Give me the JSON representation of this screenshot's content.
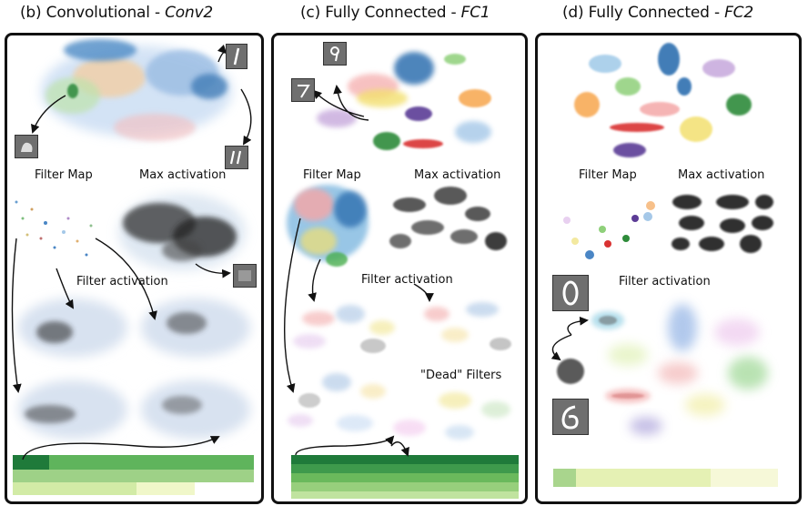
{
  "panels": [
    {
      "title_pre": "(b) Convolutional - ",
      "title_em": "Conv2",
      "filter_map": "Filter Map",
      "max_activation": "Max activation",
      "filter_activation": "Filter activation"
    },
    {
      "title_pre": "(c) Fully Connected - ",
      "title_em": "FC1",
      "filter_map": "Filter Map",
      "max_activation": "Max activation",
      "filter_activation": "Filter activation",
      "dead_filters": "\"Dead\" Filters"
    },
    {
      "title_pre": "(d) Fully Connected - ",
      "title_em": "FC2",
      "filter_map": "Filter Map",
      "max_activation": "Max activation",
      "filter_activation": "Filter activation"
    }
  ],
  "digits": [
    "1",
    "1",
    "9",
    "7",
    "0",
    "6"
  ],
  "colors": {
    "green_dark": "#1f7a3a",
    "green_mid": "#7cc46a",
    "green_light": "#d7ecaa",
    "cream": "#fbfbe6",
    "orange": "#f7a64d",
    "blue": "#2f7ab8",
    "purple": "#5c3c96",
    "red": "#d93232"
  }
}
